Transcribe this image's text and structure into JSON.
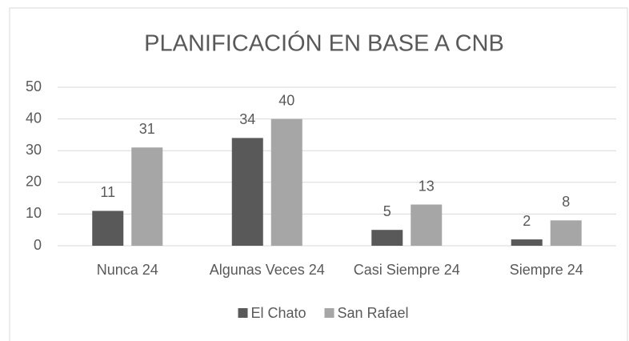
{
  "chart_data": {
    "type": "bar",
    "title": "PLANIFICACIÓN EN BASE A CNB",
    "categories": [
      "Nunca 24",
      "Algunas Veces 24",
      "Casi Siempre 24",
      "Siempre 24"
    ],
    "series": [
      {
        "name": "El Chato",
        "color": "#595959",
        "values": [
          11,
          34,
          5,
          2
        ]
      },
      {
        "name": "San Rafael",
        "color": "#a6a6a6",
        "values": [
          31,
          40,
          13,
          8
        ]
      }
    ],
    "ylim": [
      0,
      50
    ],
    "yticks": [
      0,
      10,
      20,
      30,
      40,
      50
    ],
    "grid": true,
    "legend": "bottom"
  }
}
